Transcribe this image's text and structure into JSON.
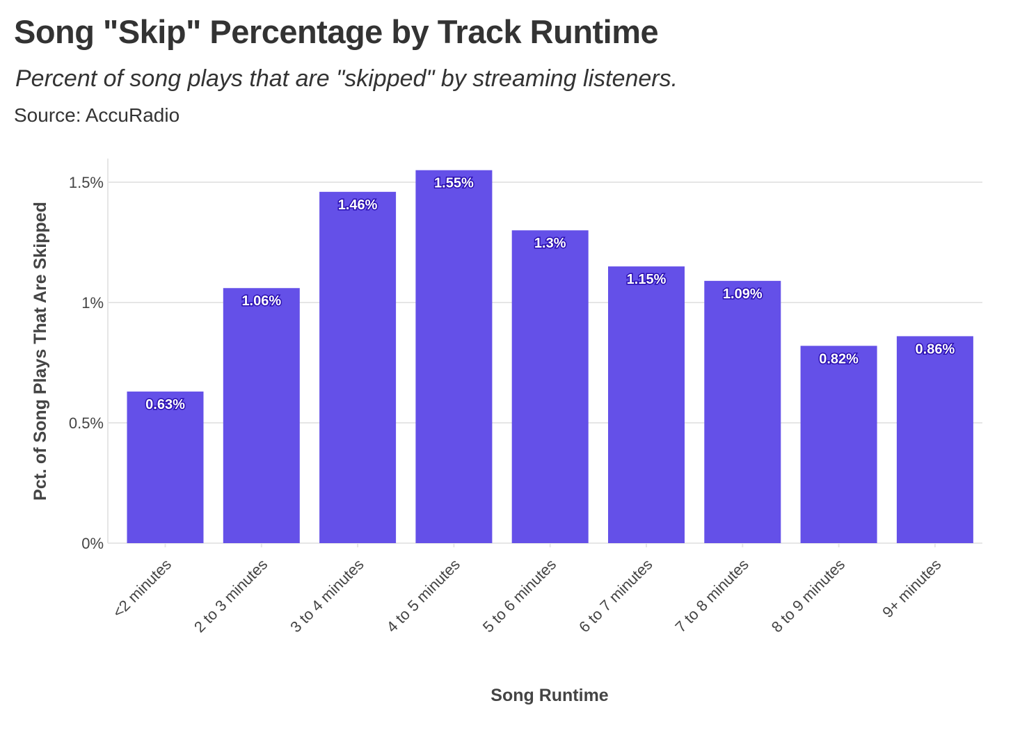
{
  "header": {
    "title": "Song \"Skip\" Percentage by Track Runtime",
    "subtitle": "Percent of song plays that are \"skipped\" by streaming listeners.",
    "source": "Source: AccuRadio"
  },
  "colors": {
    "bar": "#6450e8",
    "grid": "#e6e6e6",
    "label_outline": "#2a0fb0",
    "text": "#333333"
  },
  "chart_data": {
    "type": "bar",
    "title": "Song \"Skip\" Percentage by Track Runtime",
    "subtitle": "Percent of song plays that are \"skipped\" by streaming listeners.",
    "xlabel": "Song Runtime",
    "ylabel": "Pct. of Song Plays That Are Skipped",
    "categories": [
      "<2 minutes",
      "2 to 3 minutes",
      "3 to 4 minutes",
      "4 to 5 minutes",
      "5 to 6 minutes",
      "6 to 7 minutes",
      "7 to 8 minutes",
      "8 to 9 minutes",
      "9+ minutes"
    ],
    "values": [
      0.63,
      1.06,
      1.46,
      1.55,
      1.3,
      1.15,
      1.09,
      0.82,
      0.86
    ],
    "value_labels": [
      "0.63%",
      "1.06%",
      "1.46%",
      "1.55%",
      "1.3%",
      "1.15%",
      "1.09%",
      "0.82%",
      "0.86%"
    ],
    "ylim": [
      0,
      1.6
    ],
    "yticks": [
      0,
      0.5,
      1,
      1.5
    ],
    "ytick_labels": [
      "0%",
      "0.5%",
      "1%",
      "1.5%"
    ],
    "grid": true,
    "legend": "none"
  }
}
